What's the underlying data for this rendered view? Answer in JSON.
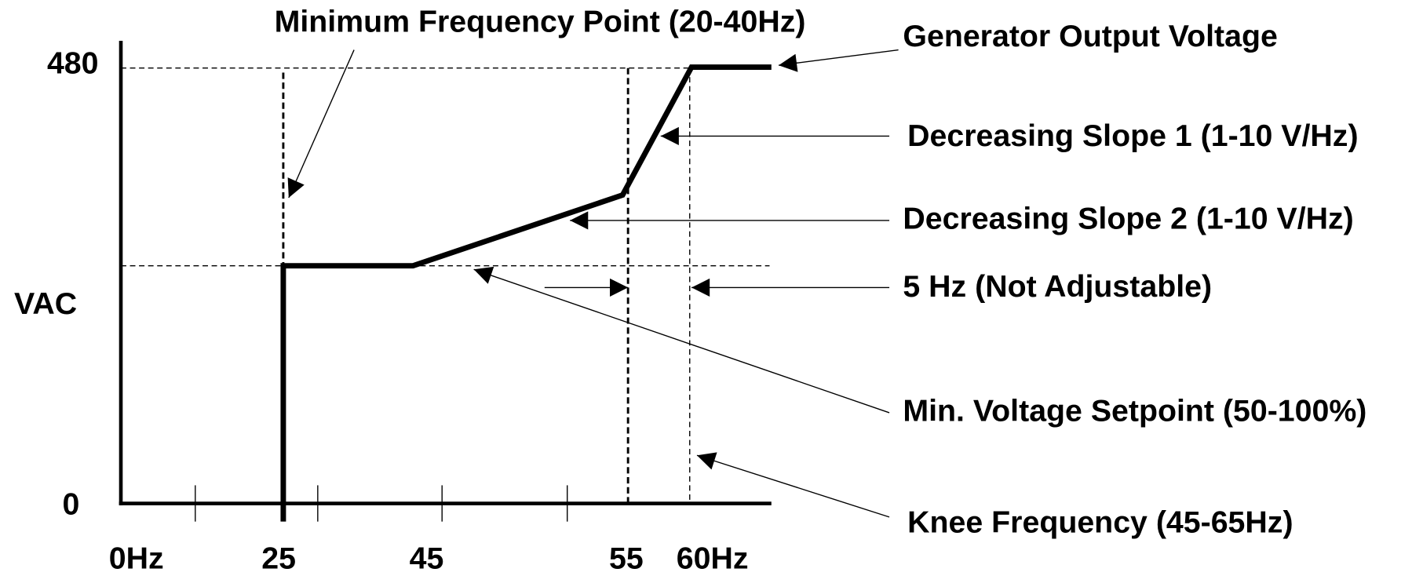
{
  "y_axis": {
    "label": "VAC",
    "ticks": [
      "480",
      "0"
    ]
  },
  "x_axis": {
    "ticks": [
      "0Hz",
      "25",
      "45",
      "55",
      "60Hz"
    ]
  },
  "annotations": [
    {
      "label": "Minimum Frequency Point (20-40Hz)"
    },
    {
      "label": "Generator Output Voltage"
    },
    {
      "label": "Decreasing Slope 1 (1-10 V/Hz)"
    },
    {
      "label": "Decreasing Slope 2 (1-10 V/Hz)"
    },
    {
      "label": "5 Hz (Not Adjustable)"
    },
    {
      "label": "Min. Voltage Setpoint (50-100%)"
    },
    {
      "label": "Knee Frequency (45-65Hz)"
    }
  ]
}
